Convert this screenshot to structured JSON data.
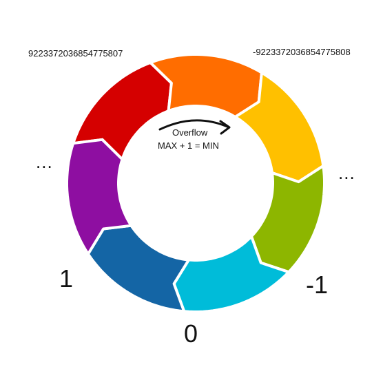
{
  "labels": {
    "max_value": "9223372036854775807",
    "min_value": "-9223372036854775808",
    "left_ellipsis": "...",
    "right_ellipsis": "...",
    "one": "1",
    "zero": "0",
    "minus_one": "-1"
  },
  "center": {
    "overflow": "Overflow",
    "equation": "MAX + 1 = MIN"
  },
  "segments": [
    {
      "name": "segment-red",
      "color": "#D50000"
    },
    {
      "name": "segment-orange",
      "color": "#FF6D00"
    },
    {
      "name": "segment-amber",
      "color": "#FFC000"
    },
    {
      "name": "segment-green",
      "color": "#8DB600"
    },
    {
      "name": "segment-cyan",
      "color": "#00BCD9"
    },
    {
      "name": "segment-blue",
      "color": "#1465A5"
    },
    {
      "name": "segment-purple",
      "color": "#8E0EA1"
    }
  ]
}
